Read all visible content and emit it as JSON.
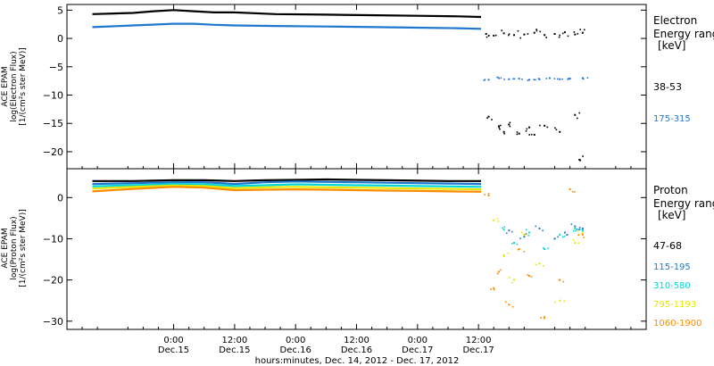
{
  "chart_data": [
    {
      "type": "scatter",
      "panel": "electron",
      "ylabel_lines": [
        "ACE EPAM",
        "log(Electron Flux)",
        "[1/(cm²s ster MeV)]"
      ],
      "ylim": [
        -23,
        6
      ],
      "yticks": [
        5,
        0,
        -5,
        -10,
        -15,
        -20
      ],
      "legend_title_lines": [
        "Electron",
        "Energy ranges",
        "[keV]"
      ],
      "series": [
        {
          "name": "38-53",
          "color": "#000000",
          "segments": [
            {
              "x": [
                -16,
                -8,
                -4,
                0,
                4,
                8,
                12,
                20,
                30,
                40,
                48,
                56,
                60.5
              ],
              "y": [
                4.3,
                4.5,
                4.8,
                5.0,
                4.8,
                4.6,
                4.6,
                4.3,
                4.2,
                4.1,
                4.0,
                3.9,
                3.8
              ]
            },
            {
              "x": [
                61.5,
                63,
                65,
                67,
                69,
                71,
                73,
                75,
                77,
                79,
                80.5
              ],
              "y": [
                0.8,
                0.5,
                0.9,
                0.6,
                0.7,
                1.0,
                0.6,
                0.8,
                1.1,
                0.7,
                1.0
              ]
            },
            {
              "x": [
                62,
                64,
                65,
                66,
                68,
                70,
                71,
                73,
                76,
                79,
                80
              ],
              "y": [
                -13.8,
                -15.5,
                -16.5,
                -15.2,
                -16.8,
                -15.7,
                -17.0,
                -15.4,
                -16.5,
                -13.5,
                -21.5
              ]
            }
          ]
        },
        {
          "name": "175-315",
          "color": "#1f77d0",
          "segments": [
            {
              "x": [
                -16,
                -8,
                0,
                4,
                8,
                12,
                20,
                30,
                40,
                48,
                56,
                60.5
              ],
              "y": [
                2.0,
                2.3,
                2.6,
                2.6,
                2.4,
                2.3,
                2.2,
                2.1,
                2.0,
                1.9,
                1.8,
                1.7
              ]
            },
            {
              "x": [
                62,
                64,
                66,
                68,
                70,
                72,
                74,
                76,
                78,
                80.5
              ],
              "y": [
                -7.3,
                -7.0,
                -7.2,
                -7.1,
                -7.3,
                -7.2,
                -7.0,
                -7.2,
                -7.1,
                -7.0
              ]
            }
          ]
        }
      ]
    },
    {
      "type": "scatter",
      "panel": "proton",
      "ylabel_lines": [
        "ACE EPAM",
        "log(Proton Flux)",
        "[1/(cm²s ster MeV)]"
      ],
      "ylim": [
        -32,
        7
      ],
      "yticks": [
        0,
        -10,
        -20,
        -30
      ],
      "legend_title_lines": [
        "Proton",
        "Energy ranges",
        "[keV]"
      ],
      "series": [
        {
          "name": "47-68",
          "color": "#000000",
          "segments": [
            {
              "x": [
                -16,
                -8,
                0,
                6,
                12,
                18,
                24,
                30,
                36,
                42,
                48,
                54,
                60.5
              ],
              "y": [
                4.0,
                4.0,
                4.2,
                4.2,
                4.0,
                4.2,
                4.3,
                4.4,
                4.3,
                4.2,
                4.1,
                4.0,
                4.0
              ]
            }
          ]
        },
        {
          "name": "115-195",
          "color": "#1f77d0",
          "segments": [
            {
              "x": [
                -16,
                -8,
                0,
                6,
                12,
                18,
                24,
                30,
                36,
                42,
                48,
                54,
                60.5
              ],
              "y": [
                3.3,
                3.5,
                3.7,
                3.7,
                3.3,
                3.7,
                3.9,
                3.8,
                3.7,
                3.6,
                3.5,
                3.4,
                3.3
              ]
            },
            {
              "x": [
                66,
                69,
                72,
                75,
                77,
                79,
                80.5
              ],
              "y": [
                -8.0,
                -9.5,
                -7.5,
                -10.0,
                -8.5,
                -7.0,
                -7.5
              ]
            }
          ]
        },
        {
          "name": "310-580",
          "color": "#00d8d8",
          "segments": [
            {
              "x": [
                -16,
                -8,
                0,
                6,
                12,
                18,
                24,
                30,
                36,
                42,
                48,
                54,
                60.5
              ],
              "y": [
                2.7,
                3.0,
                3.3,
                3.2,
                2.8,
                3.0,
                3.2,
                3.1,
                3.0,
                2.9,
                2.8,
                2.7,
                2.6
              ]
            },
            {
              "x": [
                65,
                67,
                70,
                73,
                76,
                79,
                80.5
              ],
              "y": [
                -7.8,
                -11.0,
                -8.5,
                -12.5,
                -9.0,
                -7.5,
                -8.0
              ]
            }
          ]
        },
        {
          "name": "795-1193",
          "color": "#e6e600",
          "segments": [
            {
              "x": [
                -16,
                -8,
                0,
                6,
                12,
                18,
                24,
                30,
                36,
                42,
                48,
                54,
                60.5
              ],
              "y": [
                2.2,
                2.6,
                2.9,
                2.8,
                2.3,
                2.5,
                2.6,
                2.5,
                2.4,
                2.3,
                2.2,
                2.1,
                2.0
              ]
            },
            {
              "x": [
                63,
                65,
                67,
                69,
                72,
                76,
                79,
                80.5
              ],
              "y": [
                -5.5,
                -14.0,
                -20.0,
                -9.0,
                -16.0,
                -25.0,
                -11.0,
                -8.5
              ]
            }
          ]
        },
        {
          "name": "1060-1900",
          "color": "#ff8c00",
          "segments": [
            {
              "x": [
                -16,
                -8,
                0,
                6,
                12,
                18,
                24,
                30,
                36,
                42,
                48,
                54,
                60.5
              ],
              "y": [
                1.5,
                2.1,
                2.6,
                2.4,
                1.8,
                1.9,
                2.0,
                1.9,
                1.8,
                1.7,
                1.6,
                1.5,
                1.4
              ]
            },
            {
              "x": [
                62,
                63,
                64,
                66,
                68,
                70,
                73,
                76,
                78,
                80.5
              ],
              "y": [
                0.5,
                -22.0,
                -18.0,
                -26.0,
                -12.5,
                -19.0,
                -29.0,
                -20.0,
                2.0,
                -9.0
              ]
            }
          ]
        }
      ]
    }
  ],
  "xaxis": {
    "xlim": [
      -21,
      93
    ],
    "ticks": [
      {
        "x": 0,
        "time": "0:00",
        "day": "Dec.15"
      },
      {
        "x": 12,
        "time": "12:00",
        "day": "Dec.15"
      },
      {
        "x": 24,
        "time": "0:00",
        "day": "Dec.16"
      },
      {
        "x": 36,
        "time": "12:00",
        "day": "Dec.16"
      },
      {
        "x": 48,
        "time": "0:00",
        "day": "Dec.17"
      },
      {
        "x": 60,
        "time": "12:00",
        "day": "Dec.17"
      }
    ],
    "xlabel": "hours:minutes, Dec. 14, 2012 - Dec. 17, 2012"
  }
}
